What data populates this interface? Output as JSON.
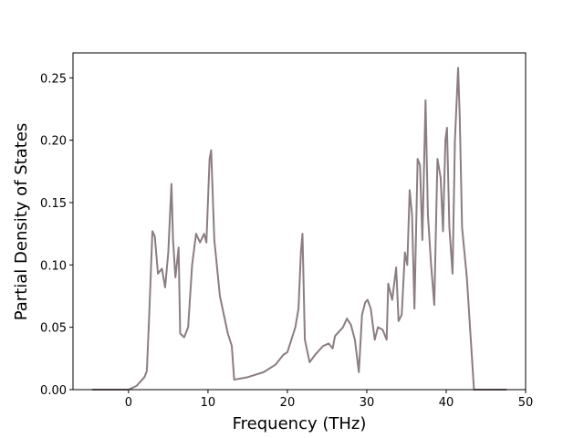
{
  "chart_data": {
    "type": "line",
    "x_label": "Frequency (THz)",
    "y_label": "Partial Density of States",
    "xlim": [
      -7,
      50
    ],
    "ylim": [
      0,
      0.27
    ],
    "xticks": [
      0,
      10,
      20,
      30,
      40,
      50
    ],
    "yticks": [
      {
        "value": 0,
        "label": "0.00"
      },
      {
        "value": 0.05,
        "label": "0.05"
      },
      {
        "value": 0.1,
        "label": "0.10"
      },
      {
        "value": 0.15,
        "label": "0.15"
      },
      {
        "value": 0.2,
        "label": "0.20"
      },
      {
        "value": 0.25,
        "label": "0.25"
      }
    ],
    "series": [
      {
        "color": "#8b7d81",
        "x": [
          -4.6,
          0,
          1,
          2,
          2.3,
          2.6,
          3,
          3.3,
          3.7,
          4.2,
          4.6,
          5.0,
          5.4,
          5.6,
          5.9,
          6.3,
          6.5,
          7,
          7.5,
          8,
          8.5,
          9,
          9.5,
          9.8,
          10.2,
          10.4,
          10.8,
          11.5,
          12.5,
          13,
          13.3,
          15,
          17,
          18.5,
          19.5,
          20,
          20.5,
          21,
          21.4,
          21.7,
          21.9,
          22.2,
          22.8,
          23.5,
          24.5,
          25.2,
          25.7,
          26,
          27,
          27.5,
          28,
          28.5,
          29,
          29.4,
          29.8,
          30.1,
          30.5,
          31,
          31.4,
          32,
          32.5,
          32.7,
          33.2,
          33.7,
          34,
          34.4,
          34.8,
          35.1,
          35.4,
          35.7,
          36,
          36.4,
          36.7,
          37,
          37.4,
          37.7,
          38.1,
          38.5,
          38.9,
          39.3,
          39.6,
          39.9,
          40.1,
          40.4,
          40.8,
          41.1,
          41.5,
          41.7,
          42,
          42.6,
          43.2,
          43.5,
          47.6
        ],
        "values": [
          0,
          0,
          0.003,
          0.01,
          0.015,
          0.06,
          0.127,
          0.123,
          0.093,
          0.097,
          0.082,
          0.11,
          0.165,
          0.12,
          0.09,
          0.114,
          0.045,
          0.042,
          0.05,
          0.1,
          0.125,
          0.118,
          0.125,
          0.118,
          0.185,
          0.192,
          0.12,
          0.075,
          0.045,
          0.035,
          0.008,
          0.01,
          0.014,
          0.02,
          0.028,
          0.03,
          0.04,
          0.05,
          0.065,
          0.11,
          0.125,
          0.04,
          0.022,
          0.028,
          0.035,
          0.037,
          0.033,
          0.043,
          0.05,
          0.057,
          0.052,
          0.04,
          0.014,
          0.06,
          0.07,
          0.072,
          0.065,
          0.04,
          0.05,
          0.048,
          0.04,
          0.085,
          0.072,
          0.098,
          0.055,
          0.06,
          0.11,
          0.1,
          0.16,
          0.14,
          0.065,
          0.185,
          0.18,
          0.12,
          0.232,
          0.14,
          0.1,
          0.068,
          0.185,
          0.17,
          0.127,
          0.2,
          0.21,
          0.13,
          0.093,
          0.2,
          0.258,
          0.22,
          0.13,
          0.09,
          0.03,
          0,
          0
        ]
      }
    ]
  }
}
